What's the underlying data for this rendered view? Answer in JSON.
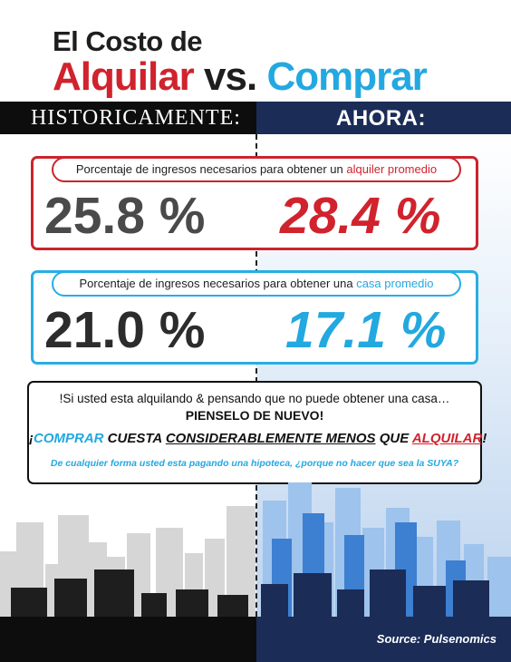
{
  "title": {
    "line1": "El Costo de",
    "word_rent": "Alquilar",
    "word_vs": "vs.",
    "word_buy": "Comprar"
  },
  "headers": {
    "left": "HISTORICAMENTE:",
    "right": "AHORA:"
  },
  "rent": {
    "label_prefix": "Porcentaje de ingresos necesarios para obtener un ",
    "label_highlight": "alquiler promedio",
    "historical": "25.8 %",
    "now": "28.4 %"
  },
  "buy": {
    "label_prefix": "Porcentaje de ingresos necesarios para obtener una ",
    "label_highlight": "casa promedio",
    "historical": "21.0 %",
    "now": "17.1 %"
  },
  "message": {
    "line1": "!Si usted esta alquilando & pensando que no puede obtener una casa…",
    "line2": "PIENSELO DE NUEVO!",
    "line3_open": "¡",
    "line3_buy": "COMPRAR",
    "line3_mid": " CUESTA ",
    "line3_emph": "CONSIDERABLEMENTE MENOS",
    "line3_que": " QUE ",
    "line3_rent": "ALQUILAR",
    "line3_close": "!",
    "line4": "De cualquier forma usted esta pagando una hipoteca, ¿porque no hacer que sea la SUYA?"
  },
  "source": "Source: Pulsenomics",
  "colors": {
    "red": "#d0232d",
    "blue": "#23a8e0",
    "navy": "#1b2c57",
    "black": "#0d0d0d"
  }
}
